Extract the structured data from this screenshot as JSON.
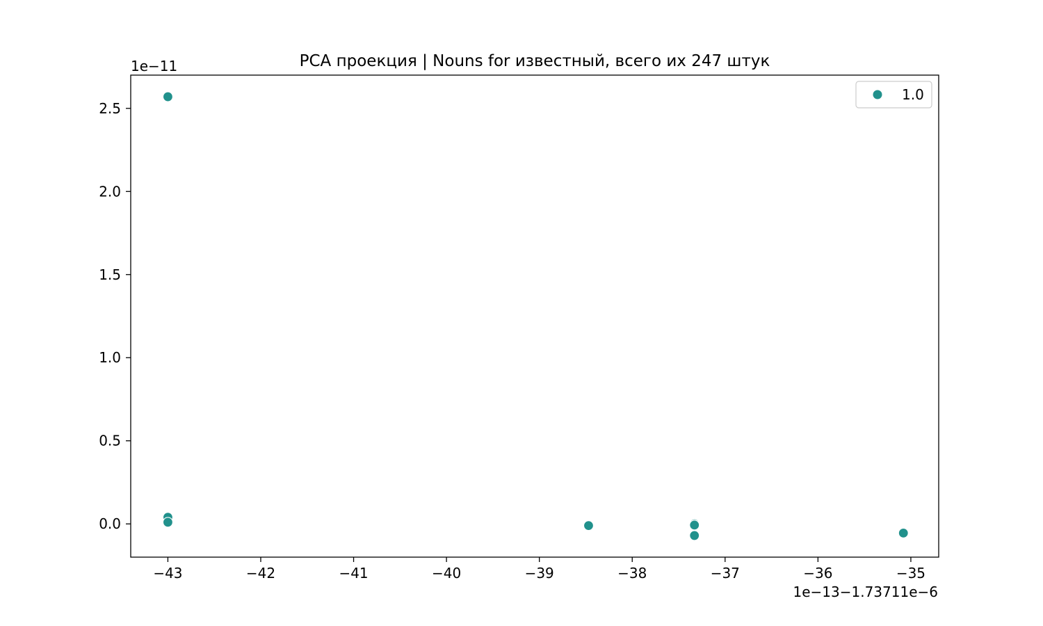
{
  "chart_data": {
    "type": "scatter",
    "title": "PCA проекция | Nouns for известный, всего их 247 штук",
    "xlabel": "",
    "ylabel": "",
    "x_offset_label": "1e−13−1.73711e−6",
    "y_offset_label": "1e−11",
    "xlim": [
      -43.4,
      -34.7
    ],
    "ylim": [
      -0.2,
      2.7
    ],
    "x_ticks": [
      -43,
      -42,
      -41,
      -40,
      -39,
      -38,
      -37,
      -36,
      -35
    ],
    "x_tick_labels": [
      "−43",
      "−42",
      "−41",
      "−40",
      "−39",
      "−38",
      "−37",
      "−36",
      "−35"
    ],
    "y_ticks": [
      0.0,
      0.5,
      1.0,
      1.5,
      2.0,
      2.5
    ],
    "y_tick_labels": [
      "0.0",
      "0.5",
      "1.0",
      "1.5",
      "2.0",
      "2.5"
    ],
    "grid": false,
    "legend_position": "top-right",
    "series": [
      {
        "name": "1.0",
        "color": "#21918c",
        "points": [
          {
            "x": -43.0,
            "y": 2.57
          },
          {
            "x": -43.0,
            "y": 0.04
          },
          {
            "x": -43.0,
            "y": 0.01
          },
          {
            "x": -38.47,
            "y": -0.01
          },
          {
            "x": -37.33,
            "y": 0.0
          },
          {
            "x": -37.33,
            "y": -0.007
          },
          {
            "x": -37.33,
            "y": -0.07
          },
          {
            "x": -35.08,
            "y": -0.055
          }
        ]
      }
    ]
  }
}
